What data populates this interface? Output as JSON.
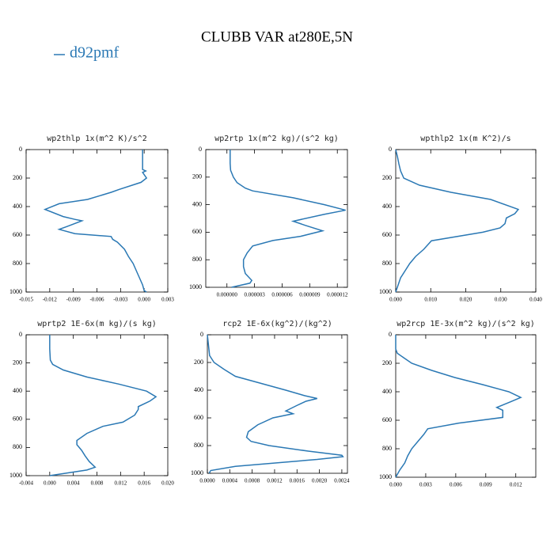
{
  "title": "CLUBB VAR at280E,5N",
  "legend": {
    "name": "d92pmf",
    "color": "#2a78b4"
  },
  "chart_data": [
    {
      "type": "line",
      "title": "wp2thlp   1x(m^2 K)/s^2",
      "y": [
        0,
        100,
        140,
        150,
        160,
        200,
        230,
        280,
        300,
        350,
        380,
        420,
        470,
        490,
        500,
        540,
        560,
        590,
        610,
        630,
        650,
        700,
        750,
        800,
        850,
        900,
        950,
        990,
        1000
      ],
      "values": [
        -0.0002,
        -0.0002,
        -0.0002,
        0.0002,
        -0.0002,
        0.0003,
        -0.0004,
        -0.0032,
        -0.0042,
        -0.0072,
        -0.0108,
        -0.0126,
        -0.0103,
        -0.0088,
        -0.0079,
        -0.0098,
        -0.0108,
        -0.0088,
        -0.0042,
        -0.004,
        -0.0034,
        -0.0025,
        -0.002,
        -0.0014,
        -0.001,
        -0.0006,
        -0.0002,
        0,
        0.0003
      ],
      "color": "#2a78b4",
      "xlim": [
        -0.015,
        0.003
      ],
      "xticks": [
        {
          "value": -0.015,
          "label": "-0.015"
        },
        {
          "value": -0.012,
          "label": "-0.012"
        },
        {
          "value": -0.009,
          "label": "-0.009"
        },
        {
          "value": -0.006,
          "label": "-0.006"
        },
        {
          "value": -0.003,
          "label": "-0.003"
        },
        {
          "value": 0,
          "label": "0.000"
        },
        {
          "value": 0.003,
          "label": "0.003"
        }
      ],
      "ylim": [
        1000,
        0
      ],
      "yticks": [
        0,
        200,
        400,
        600,
        800,
        1000
      ]
    },
    {
      "type": "line",
      "title": "wp2rtp   1x(m^2 kg)/(s^2 kg)",
      "y": [
        0,
        100,
        150,
        200,
        240,
        280,
        300,
        350,
        400,
        440,
        470,
        520,
        550,
        590,
        630,
        660,
        700,
        750,
        800,
        850,
        900,
        950,
        970,
        1000
      ],
      "values": [
        3.5e-07,
        3.5e-07,
        4e-07,
        7e-07,
        1.1e-06,
        2e-06,
        2.8e-06,
        7.2e-06,
        1.06e-05,
        1.29e-05,
        1.06e-05,
        7.2e-06,
        8.5e-06,
        1.04e-05,
        8e-06,
        5e-06,
        2.8e-06,
        2.2e-06,
        1.8e-06,
        1.8e-06,
        2e-06,
        2.7e-06,
        2.5e-06,
        5e-07
      ],
      "color": "#2a78b4",
      "xlim": [
        -2.3e-06,
        1.31e-05
      ],
      "xticks": [
        {
          "value": 0,
          "label": "0.000000"
        },
        {
          "value": 3e-06,
          "label": "0.000003"
        },
        {
          "value": 6e-06,
          "label": "0.000006"
        },
        {
          "value": 9e-06,
          "label": "0.000009"
        },
        {
          "value": 1.2e-05,
          "label": "0.000012"
        }
      ],
      "ylim": [
        1000,
        0
      ],
      "yticks": [
        0,
        200,
        400,
        600,
        800,
        1000
      ]
    },
    {
      "type": "line",
      "title": "wpthlp2   1x(m K^2)/s",
      "y": [
        0,
        50,
        100,
        150,
        200,
        250,
        300,
        350,
        420,
        450,
        480,
        520,
        550,
        580,
        640,
        700,
        750,
        800,
        850,
        900,
        950,
        1000
      ],
      "values": [
        0,
        0.0005,
        0.0009,
        0.0014,
        0.0023,
        0.0068,
        0.0158,
        0.0271,
        0.035,
        0.034,
        0.0316,
        0.0312,
        0.0298,
        0.0249,
        0.0102,
        0.008,
        0.0057,
        0.004,
        0.0027,
        0.0014,
        0.0007,
        0
      ],
      "color": "#2a78b4",
      "xlim": [
        0,
        0.04
      ],
      "xticks": [
        {
          "value": 0,
          "label": "0.000"
        },
        {
          "value": 0.01,
          "label": "0.010"
        },
        {
          "value": 0.02,
          "label": "0.020"
        },
        {
          "value": 0.03,
          "label": "0.030"
        },
        {
          "value": 0.04,
          "label": "0.040"
        }
      ],
      "ylim": [
        1000,
        0
      ],
      "yticks": [
        0,
        200,
        400,
        600,
        800,
        1000
      ]
    },
    {
      "type": "line",
      "title": "wprtp2   1E-6x(m kg)/(s kg)",
      "y": [
        0,
        100,
        180,
        210,
        250,
        300,
        350,
        400,
        440,
        470,
        510,
        530,
        570,
        620,
        650,
        700,
        750,
        780,
        820,
        860,
        900,
        940,
        960,
        1000
      ],
      "values": [
        0,
        0,
        0.0001,
        0.0005,
        0.0023,
        0.0063,
        0.0117,
        0.0164,
        0.018,
        0.017,
        0.015,
        0.015,
        0.0144,
        0.0124,
        0.009,
        0.0063,
        0.0046,
        0.0046,
        0.0054,
        0.006,
        0.0067,
        0.0077,
        0.0063,
        0
      ],
      "color": "#2a78b4",
      "xlim": [
        -0.004,
        0.02
      ],
      "xticks": [
        {
          "value": -0.004,
          "label": "-0.004"
        },
        {
          "value": 0,
          "label": "0.000"
        },
        {
          "value": 0.004,
          "label": "0.004"
        },
        {
          "value": 0.008,
          "label": "0.008"
        },
        {
          "value": 0.012,
          "label": "0.012"
        },
        {
          "value": 0.016,
          "label": "0.016"
        },
        {
          "value": 0.02,
          "label": "0.020"
        }
      ],
      "ylim": [
        1000,
        0
      ],
      "yticks": [
        0,
        200,
        400,
        600,
        800,
        1000
      ]
    },
    {
      "type": "line",
      "title": "rcp2   1E-6x(kg^2)/(kg^2)",
      "y": [
        0,
        150,
        200,
        250,
        300,
        350,
        400,
        440,
        460,
        480,
        510,
        550,
        570,
        600,
        650,
        700,
        740,
        770,
        800,
        840,
        870,
        880,
        900,
        950,
        980,
        1000
      ],
      "values": [
        0,
        4e-05,
        0.00012,
        0.0003,
        0.0005,
        0.00095,
        0.0014,
        0.00174,
        0.00196,
        0.00176,
        0.0016,
        0.0014,
        0.00153,
        0.00117,
        0.0009,
        0.00073,
        0.0007,
        0.00078,
        0.0011,
        0.0018,
        0.0024,
        0.00242,
        0.00196,
        0.0005,
        6e-05,
        3e-05
      ],
      "color": "#2a78b4",
      "xlim": [
        0,
        0.0025
      ],
      "xticks": [
        {
          "value": 0,
          "label": "0.0000"
        },
        {
          "value": 0.0004,
          "label": "0.0004"
        },
        {
          "value": 0.0008,
          "label": "0.0008"
        },
        {
          "value": 0.0012,
          "label": "0.0012"
        },
        {
          "value": 0.0016,
          "label": "0.0016"
        },
        {
          "value": 0.002,
          "label": "0.0020"
        },
        {
          "value": 0.0024,
          "label": "0.0024"
        }
      ],
      "ylim": [
        1000,
        0
      ],
      "yticks": [
        0,
        200,
        400,
        600,
        800,
        1000
      ]
    },
    {
      "type": "line",
      "title": "wp2rcp   1E-3x(m^2 kg)/(s^2 kg)",
      "y": [
        0,
        100,
        130,
        200,
        250,
        300,
        350,
        400,
        440,
        470,
        510,
        530,
        580,
        620,
        660,
        700,
        750,
        800,
        850,
        900,
        950,
        1000
      ],
      "values": [
        0,
        0,
        0.00016,
        0.0016,
        0.0036,
        0.0059,
        0.0087,
        0.0113,
        0.0125,
        0.0115,
        0.0101,
        0.0107,
        0.0107,
        0.0063,
        0.0032,
        0.0028,
        0.0022,
        0.0016,
        0.0012,
        0.0009,
        0.0004,
        0
      ],
      "color": "#2a78b4",
      "xlim": [
        0,
        0.014
      ],
      "xticks": [
        {
          "value": 0,
          "label": "0.000"
        },
        {
          "value": 0.003,
          "label": "0.003"
        },
        {
          "value": 0.006,
          "label": "0.006"
        },
        {
          "value": 0.009,
          "label": "0.009"
        },
        {
          "value": 0.012,
          "label": "0.012"
        }
      ],
      "ylim": [
        1000,
        0
      ],
      "yticks": [
        0,
        200,
        400,
        600,
        800,
        1000
      ]
    }
  ]
}
